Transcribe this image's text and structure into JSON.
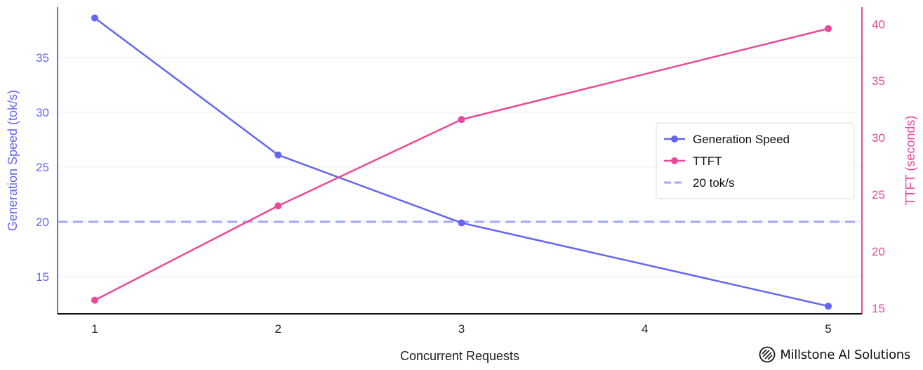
{
  "chart_data": {
    "type": "line",
    "x": [
      1,
      2,
      3,
      4,
      5
    ],
    "xlabel": "Concurrent Requests",
    "x_ticks": [
      "1",
      "2",
      "3",
      "4",
      "5"
    ],
    "y_left": {
      "label": "Generation Speed (tok/s)",
      "range": [
        11.6,
        39.6
      ],
      "ticks": [
        "15",
        "20",
        "25",
        "30",
        "35"
      ],
      "color": "#6366f1"
    },
    "y_right": {
      "label": "TTFT (seconds)",
      "range": [
        14.5,
        41.5
      ],
      "ticks": [
        "15",
        "20",
        "25",
        "30",
        "35",
        "40"
      ],
      "color": "#ec4899"
    },
    "series": [
      {
        "name": "Generation Speed",
        "axis": "left",
        "color": "#6366f1",
        "points": [
          [
            1,
            38.6
          ],
          [
            2,
            26.1
          ],
          [
            3,
            19.9
          ],
          [
            5,
            12.3
          ]
        ]
      },
      {
        "name": "TTFT",
        "axis": "right",
        "color": "#ec4899",
        "points": [
          [
            1,
            15.7
          ],
          [
            2,
            24.0
          ],
          [
            3,
            31.6
          ],
          [
            5,
            39.6
          ]
        ]
      }
    ],
    "reference_line": {
      "name": "20 tok/s",
      "axis": "left",
      "value": 20,
      "color": "#a5a8f5",
      "style": "dashed"
    },
    "legend": {
      "placement": "center-right",
      "entries": [
        "Generation Speed",
        "TTFT",
        "20 tok/s"
      ]
    },
    "grid": "horizontal"
  },
  "brand": {
    "name": "Millstone AI Solutions"
  }
}
